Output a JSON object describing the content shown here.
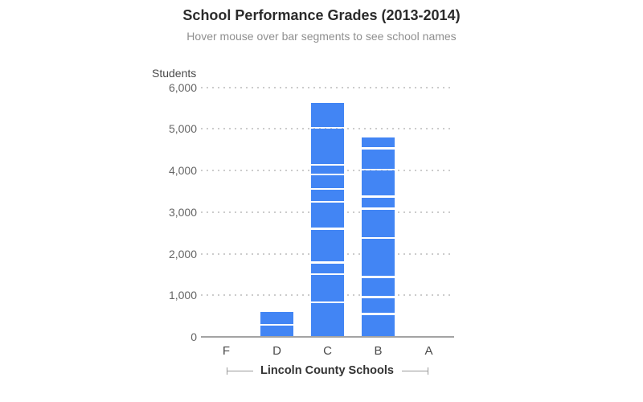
{
  "chart_data": {
    "type": "bar",
    "stacked": true,
    "title": "School Performance Grades (2013-2014)",
    "subtitle": "Hover mouse over bar segments to see school names",
    "ylabel": "Students",
    "xlabel": "Lincoln County Schools",
    "categories": [
      "F",
      "D",
      "C",
      "B",
      "A"
    ],
    "ylim": [
      0,
      6000
    ],
    "ytick_labels": [
      "0",
      "1,000",
      "2,000",
      "3,000",
      "4,000",
      "5,000",
      "6,000"
    ],
    "grid": "dotted horizontal",
    "legend": "none",
    "bar_color": "#4285F4",
    "segment_gap_color": "#ffffff",
    "segments_by_category": {
      "F": [],
      "D": [
        295,
        330
      ],
      "C": [
        830,
        680,
        275,
        815,
        645,
        305,
        355,
        225,
        890,
        635
      ],
      "B": [
        550,
        405,
        485,
        940,
        700,
        290,
        645,
        515,
        280
      ],
      "A": []
    },
    "totals_by_category": {
      "F": 0,
      "D": 625,
      "C": 5655,
      "B": 4810,
      "A": 0
    }
  }
}
